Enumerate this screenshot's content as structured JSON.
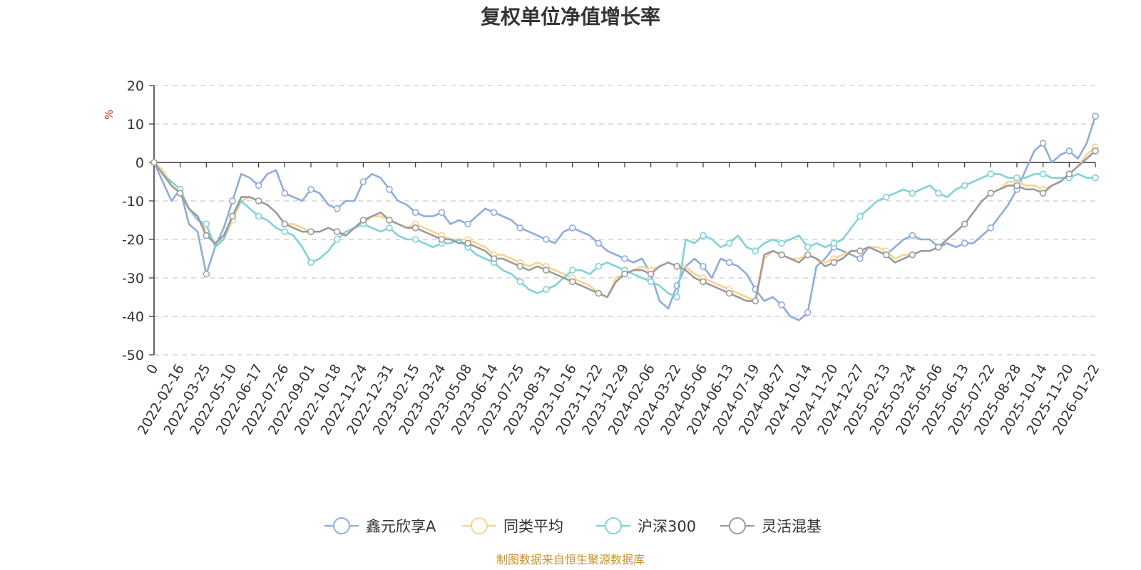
{
  "chart_data": {
    "type": "line",
    "title": "复权单位净值增长率",
    "ylabel": "%",
    "ylim": [
      -50,
      20
    ],
    "yticks": [
      20,
      10,
      0,
      -10,
      -20,
      -30,
      -40,
      -50
    ],
    "grid": true,
    "legend_position": "bottom",
    "source": "制图数据来自恒生聚源数据库",
    "x_labels": [
      "0",
      "2022-02-16",
      "2022-03-25",
      "2022-05-10",
      "2022-06-17",
      "2022-07-26",
      "2022-09-01",
      "2022-10-18",
      "2022-11-24",
      "2022-12-31",
      "2023-02-15",
      "2023-03-24",
      "2023-05-08",
      "2023-06-14",
      "2023-07-25",
      "2023-08-31",
      "2023-10-16",
      "2023-11-22",
      "2023-12-29",
      "2024-02-06",
      "2024-03-22",
      "2024-05-06",
      "2024-06-13",
      "2024-07-19",
      "2024-08-27",
      "2024-10-14",
      "2024-11-20",
      "2024-12-27",
      "2025-02-13",
      "2025-03-24",
      "2025-05-06",
      "2025-06-13",
      "2025-07-22",
      "2025-08-28",
      "2025-10-14",
      "2025-11-20",
      "2026-01-22"
    ],
    "series": [
      {
        "name": "鑫元欣享A",
        "color": "#8eacdc",
        "values": [
          0,
          -5,
          -10,
          -7,
          -16,
          -18,
          -29,
          -22,
          -17,
          -10,
          -3,
          -4,
          -6,
          -3,
          -2,
          -8,
          -9,
          -10,
          -7,
          -8,
          -11,
          -12,
          -10,
          -10,
          -5,
          -3,
          -4,
          -7,
          -10,
          -11,
          -13,
          -14,
          -14,
          -13,
          -16,
          -15,
          -16,
          -14,
          -12,
          -13,
          -14,
          -15,
          -17,
          -18,
          -19,
          -20,
          -21,
          -18,
          -17,
          -18,
          -19,
          -21,
          -23,
          -24,
          -25,
          -26,
          -25,
          -29,
          -36,
          -38,
          -32,
          -27,
          -25,
          -27,
          -30,
          -25,
          -26,
          -27,
          -29,
          -33,
          -36,
          -35,
          -37,
          -40,
          -41,
          -39,
          -27,
          -25,
          -22,
          -23,
          -24,
          -25,
          -22,
          -23,
          -24,
          -22,
          -20,
          -19,
          -20,
          -20,
          -22,
          -21,
          -22,
          -21,
          -21,
          -19,
          -17,
          -14,
          -11,
          -7,
          -2,
          3,
          5,
          0,
          2,
          3,
          1,
          5,
          12
        ]
      },
      {
        "name": "同类平均",
        "color": "#f9d38e",
        "values": [
          0,
          -2,
          -6,
          -8,
          -12,
          -14,
          -18,
          -21,
          -20,
          -15,
          -10,
          -9,
          -10,
          -11,
          -13,
          -16,
          -16,
          -17,
          -18,
          -18,
          -17,
          -18,
          -19,
          -17,
          -16,
          -14,
          -14,
          -15,
          -16,
          -17,
          -16,
          -17,
          -18,
          -19,
          -20,
          -20,
          -20,
          -21,
          -22,
          -24,
          -24,
          -25,
          -26,
          -27,
          -26,
          -27,
          -28,
          -29,
          -30,
          -31,
          -32,
          -34,
          -35,
          -30,
          -29,
          -28,
          -27,
          -28,
          -27,
          -26,
          -27,
          -27,
          -29,
          -30,
          -31,
          -32,
          -33,
          -34,
          -35,
          -36,
          -25,
          -23,
          -24,
          -25,
          -25,
          -24,
          -25,
          -26,
          -25,
          -24,
          -23,
          -23,
          -22,
          -22,
          -23,
          -25,
          -24,
          -24,
          -23,
          -23,
          -22,
          -20,
          -18,
          -16,
          -13,
          -10,
          -8,
          -7,
          -5,
          -5,
          -6,
          -6,
          -7,
          -6,
          -5,
          -3,
          -1,
          2,
          4
        ]
      },
      {
        "name": "沪深300",
        "color": "#7fd3d8",
        "values": [
          0,
          -3,
          -5,
          -7,
          -12,
          -15,
          -16,
          -22,
          -20,
          -14,
          -10,
          -12,
          -14,
          -15,
          -17,
          -18,
          -19,
          -22,
          -26,
          -25,
          -23,
          -20,
          -18,
          -17,
          -16,
          -17,
          -18,
          -17,
          -19,
          -20,
          -20,
          -21,
          -22,
          -21,
          -21,
          -20,
          -22,
          -24,
          -25,
          -26,
          -28,
          -29,
          -31,
          -33,
          -34,
          -33,
          -32,
          -30,
          -28,
          -28,
          -29,
          -27,
          -26,
          -27,
          -28,
          -29,
          -30,
          -31,
          -32,
          -34,
          -35,
          -20,
          -21,
          -19,
          -20,
          -22,
          -21,
          -19,
          -22,
          -23,
          -21,
          -20,
          -21,
          -20,
          -19,
          -22,
          -21,
          -22,
          -21,
          -20,
          -17,
          -14,
          -12,
          -10,
          -9,
          -8,
          -7,
          -8,
          -7,
          -6,
          -8,
          -9,
          -7,
          -6,
          -5,
          -4,
          -3,
          -3,
          -4,
          -4,
          -4,
          -3,
          -3,
          -4,
          -4,
          -4,
          -3,
          -4,
          -4
        ]
      },
      {
        "name": "灵活混基",
        "color": "#9b9b9b",
        "values": [
          0,
          -3,
          -6,
          -8,
          -12,
          -14,
          -19,
          -21,
          -19,
          -14,
          -9,
          -9,
          -10,
          -11,
          -13,
          -16,
          -17,
          -18,
          -18,
          -18,
          -17,
          -18,
          -19,
          -17,
          -15,
          -14,
          -13,
          -15,
          -16,
          -17,
          -17,
          -18,
          -19,
          -20,
          -20,
          -21,
          -21,
          -22,
          -23,
          -25,
          -25,
          -26,
          -27,
          -28,
          -27,
          -28,
          -29,
          -30,
          -31,
          -32,
          -33,
          -34,
          -35,
          -31,
          -29,
          -28,
          -28,
          -29,
          -27,
          -26,
          -27,
          -28,
          -30,
          -31,
          -32,
          -33,
          -34,
          -35,
          -36,
          -36,
          -24,
          -23,
          -24,
          -25,
          -26,
          -24,
          -25,
          -27,
          -26,
          -25,
          -23,
          -23,
          -22,
          -23,
          -24,
          -26,
          -25,
          -24,
          -23,
          -23,
          -22,
          -20,
          -18,
          -16,
          -13,
          -10,
          -8,
          -7,
          -6,
          -6,
          -7,
          -7,
          -8,
          -6,
          -5,
          -3,
          -1,
          1,
          3
        ]
      }
    ]
  }
}
